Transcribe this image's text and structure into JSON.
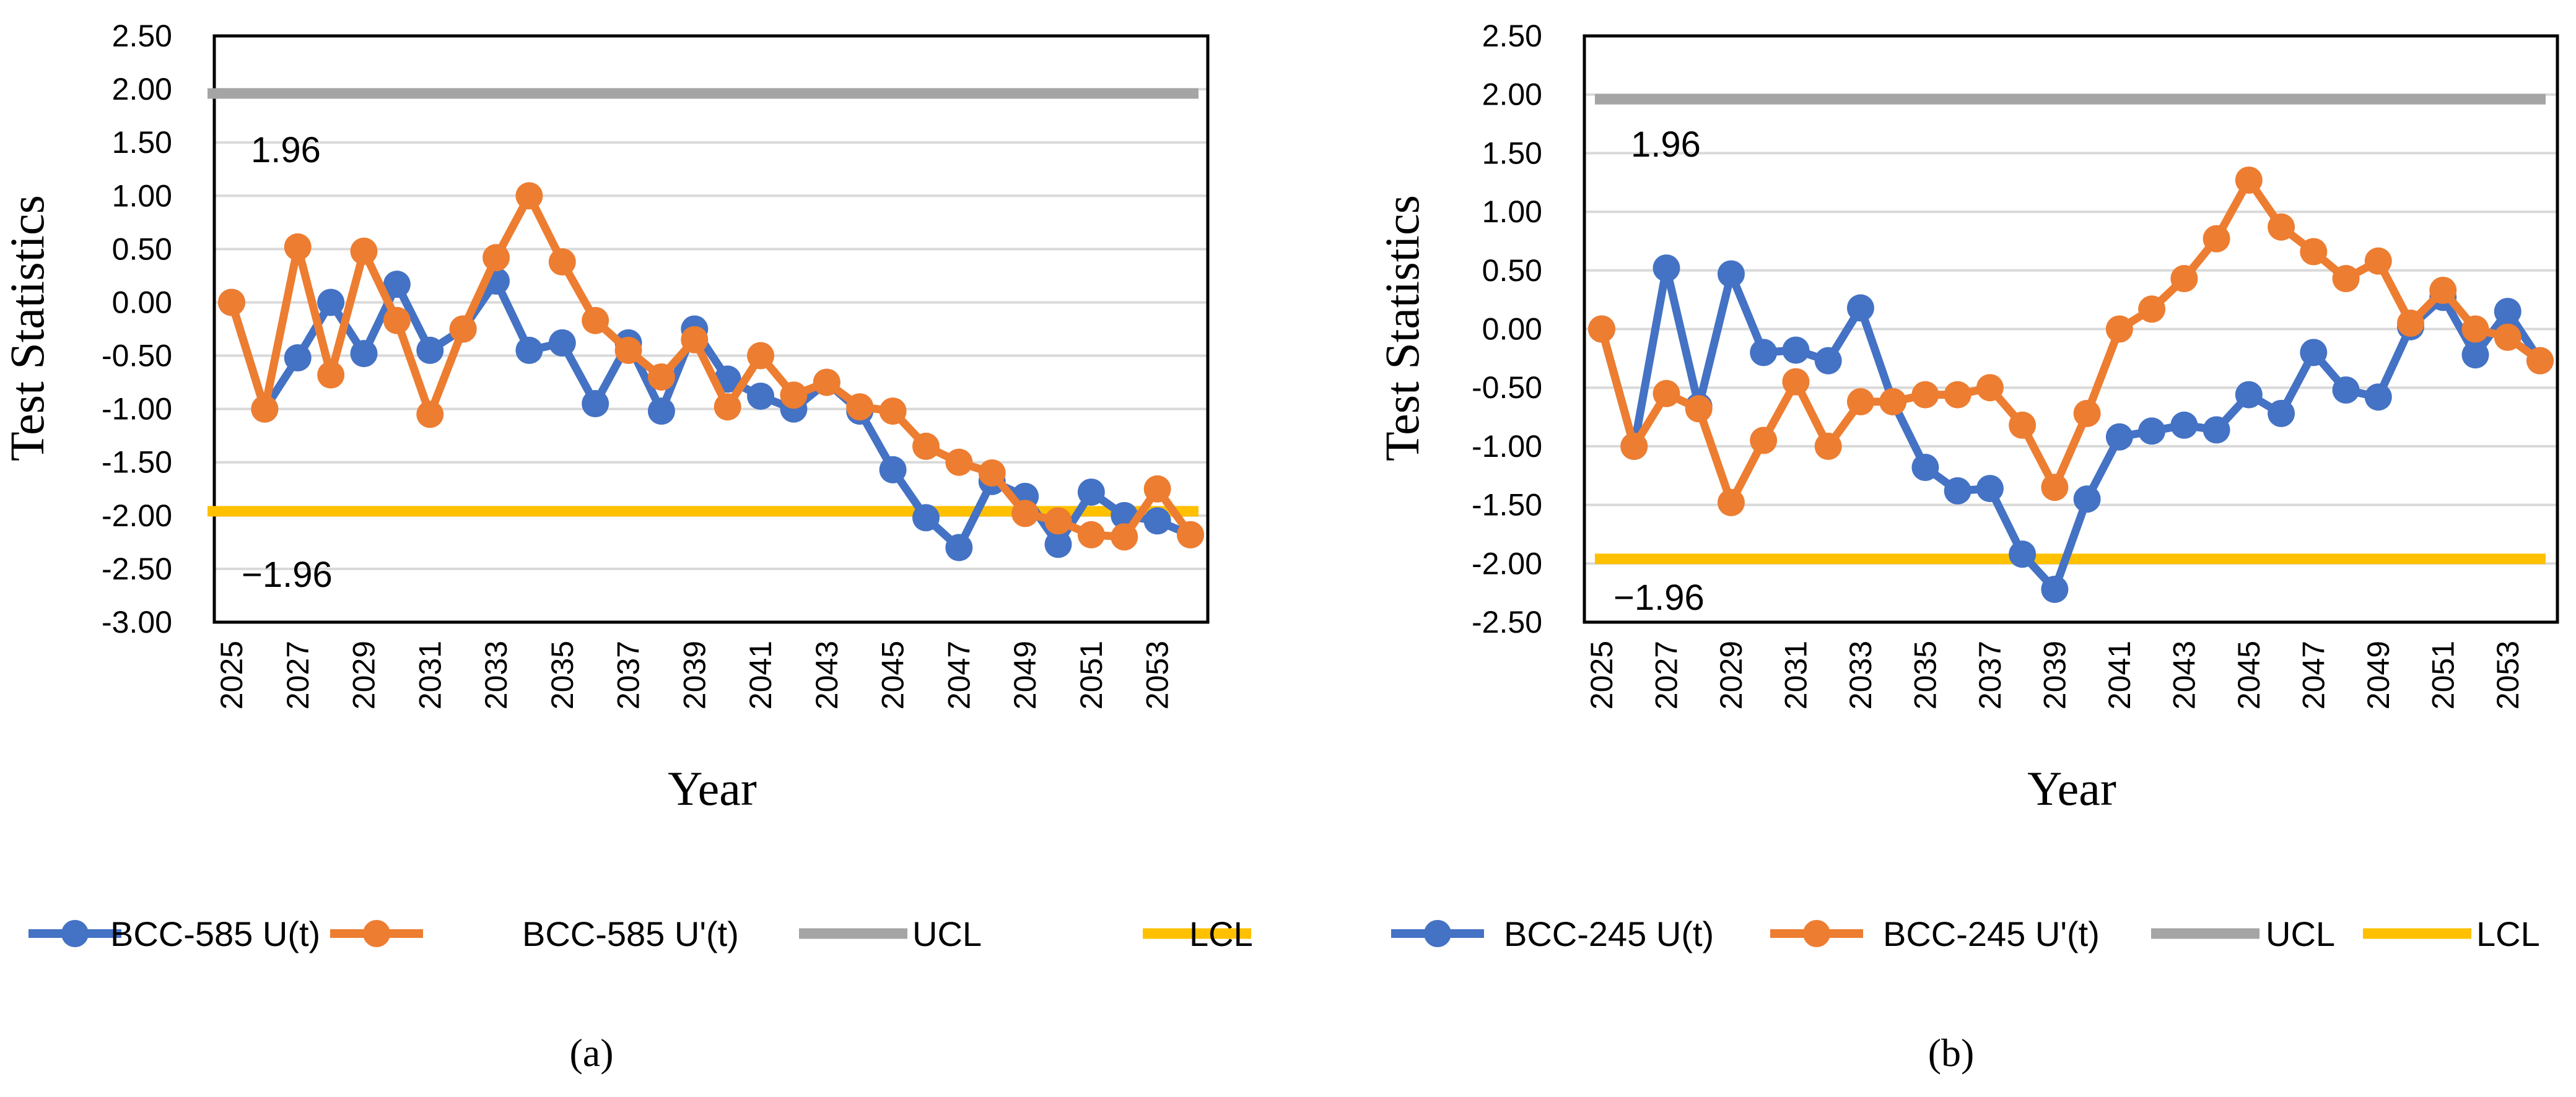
{
  "chart_data": [
    {
      "type": "line",
      "panel": "a",
      "xlabel": "Year",
      "ylabel": "Test Statistics",
      "ylim": [
        -3.0,
        2.5
      ],
      "y_ticks": [
        "2.50",
        "2.00",
        "1.50",
        "1.00",
        "0.50",
        "0.00",
        "-0.50",
        "-1.00",
        "-1.50",
        "-2.00",
        "-2.50",
        "-3.00"
      ],
      "x": [
        2025,
        2026,
        2027,
        2028,
        2029,
        2030,
        2031,
        2032,
        2033,
        2034,
        2035,
        2036,
        2037,
        2038,
        2039,
        2040,
        2041,
        2042,
        2043,
        2044,
        2045,
        2046,
        2047,
        2048,
        2049,
        2050,
        2051,
        2052,
        2053,
        2054
      ],
      "x_tick_labels": [
        "2025",
        "2027",
        "2029",
        "2031",
        "2033",
        "2035",
        "2037",
        "2039",
        "2041",
        "2043",
        "2045",
        "2047",
        "2049",
        "2051",
        "2053"
      ],
      "grid": true,
      "series": [
        {
          "name": "BCC-585 U(t)",
          "color": "#4472C4",
          "markers": true,
          "values": [
            0.0,
            -1.0,
            -0.52,
            0.0,
            -0.48,
            0.17,
            -0.45,
            -0.25,
            0.2,
            -0.45,
            -0.38,
            -0.95,
            -0.38,
            -1.02,
            -0.25,
            -0.72,
            -0.88,
            -1.0,
            -0.75,
            -1.02,
            -1.57,
            -2.02,
            -2.3,
            -1.68,
            -1.82,
            -2.27,
            -1.78,
            -2.0,
            -2.05,
            -2.18
          ]
        },
        {
          "name": "BCC-585 U'(t)",
          "color": "#ED7D31",
          "markers": true,
          "values": [
            0.0,
            -1.0,
            0.52,
            -0.68,
            0.48,
            -0.17,
            -1.05,
            -0.25,
            0.42,
            1.0,
            0.38,
            -0.17,
            -0.45,
            -0.7,
            -0.35,
            -0.98,
            -0.5,
            -0.87,
            -0.75,
            -0.98,
            -1.02,
            -1.35,
            -1.5,
            -1.6,
            -1.98,
            -2.05,
            -2.18,
            -2.2,
            -1.75,
            -2.18
          ]
        },
        {
          "name": "UCL",
          "color": "#A5A5A5",
          "markers": false,
          "constant": 1.96
        },
        {
          "name": "LCL",
          "color": "#FFC000",
          "markers": false,
          "constant": -1.96
        }
      ],
      "annotations": [
        "1.96",
        "−1.96"
      ],
      "caption": "(a)"
    },
    {
      "type": "line",
      "panel": "b",
      "xlabel": "Year",
      "ylabel": "Test Statistics",
      "ylim": [
        -2.5,
        2.5
      ],
      "y_ticks": [
        "2.50",
        "2.00",
        "1.50",
        "1.00",
        "0.50",
        "0.00",
        "-0.50",
        "-1.00",
        "-1.50",
        "-2.00",
        "-2.50"
      ],
      "x": [
        2025,
        2026,
        2027,
        2028,
        2029,
        2030,
        2031,
        2032,
        2033,
        2034,
        2035,
        2036,
        2037,
        2038,
        2039,
        2040,
        2041,
        2042,
        2043,
        2044,
        2045,
        2046,
        2047,
        2048,
        2049,
        2050,
        2051,
        2052,
        2053,
        2054
      ],
      "x_tick_labels": [
        "2025",
        "2027",
        "2029",
        "2031",
        "2033",
        "2035",
        "2037",
        "2039",
        "2041",
        "2043",
        "2045",
        "2047",
        "2049",
        "2051",
        "2053"
      ],
      "grid": true,
      "series": [
        {
          "name": "BCC-245 U(t)",
          "color": "#4472C4",
          "markers": true,
          "values": [
            0.0,
            -1.0,
            0.52,
            -0.66,
            0.47,
            -0.2,
            -0.18,
            -0.27,
            0.18,
            -0.62,
            -1.18,
            -1.38,
            -1.36,
            -1.92,
            -2.22,
            -1.45,
            -0.92,
            -0.87,
            -0.82,
            -0.86,
            -0.56,
            -0.72,
            -0.2,
            -0.52,
            -0.58,
            0.02,
            0.27,
            -0.22,
            0.15,
            -0.27
          ]
        },
        {
          "name": "BCC-245 U'(t)",
          "color": "#ED7D31",
          "markers": true,
          "values": [
            0.0,
            -1.0,
            -0.55,
            -0.68,
            -1.48,
            -0.95,
            -0.45,
            -1.0,
            -0.62,
            -0.62,
            -0.56,
            -0.56,
            -0.5,
            -0.82,
            -1.35,
            -0.72,
            0.0,
            0.17,
            0.43,
            0.77,
            1.27,
            0.87,
            0.66,
            0.43,
            0.58,
            0.05,
            0.33,
            0.0,
            -0.07,
            -0.27
          ]
        },
        {
          "name": "UCL",
          "color": "#A5A5A5",
          "markers": false,
          "constant": 1.96
        },
        {
          "name": "LCL",
          "color": "#FFC000",
          "markers": false,
          "constant": -1.96
        }
      ],
      "annotations": [
        "1.96",
        "−1.96"
      ],
      "caption": "(b)"
    }
  ]
}
